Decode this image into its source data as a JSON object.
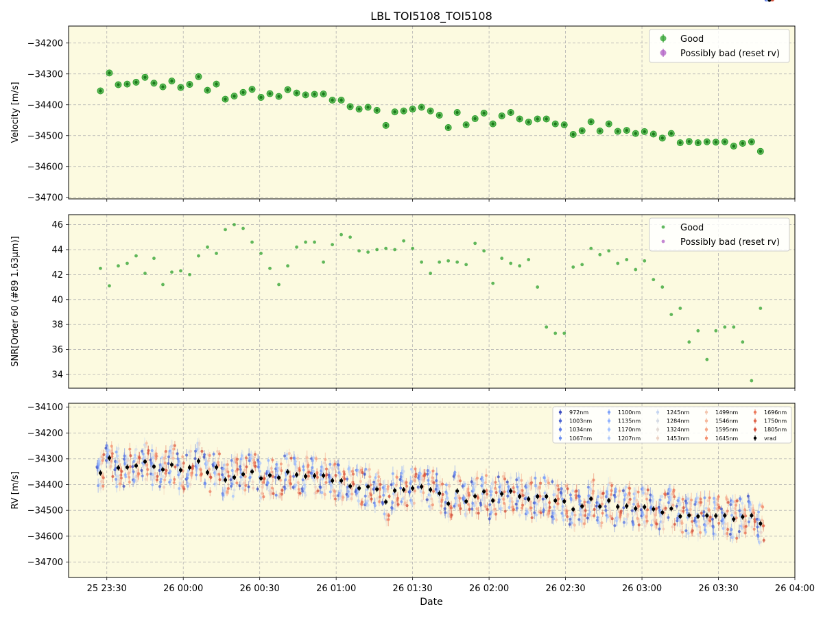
{
  "chart_data": {
    "type": "scatter",
    "title": "LBL TOI5108_TOI5108",
    "xlabel": "Date",
    "x_ticks": [
      "25 23:30",
      "26 00:00",
      "26 00:30",
      "26 01:00",
      "26 01:30",
      "26 02:00",
      "26 02:30",
      "26 03:00",
      "26 03:30",
      "26 04:00"
    ],
    "x_axis_start": "2023-xx-25 23:30",
    "xlim_minutes": [
      -15,
      270
    ],
    "colors": {
      "good": "#2ca02c",
      "bad": "#b05fc4",
      "background": "#fcfae0",
      "vrad": "#000000"
    },
    "times_min": [
      -2.5,
      1,
      4.5,
      8,
      11.5,
      15,
      18.5,
      22,
      25.5,
      29,
      32.5,
      36,
      39.5,
      43,
      46.5,
      50,
      53.5,
      57,
      60.5,
      64,
      67.5,
      71,
      74.5,
      78,
      81.5,
      85,
      88.5,
      92,
      95.5,
      99,
      102.5,
      106,
      109.5,
      113,
      116.5,
      120,
      123.5,
      127,
      130.5,
      134,
      137.5,
      141,
      144.5,
      148,
      151.5,
      155,
      158.5,
      162,
      165.5,
      169,
      172.5,
      176,
      179.5,
      183,
      186.5,
      190,
      193.5,
      197,
      200.5,
      204,
      207.5,
      211,
      214.5,
      218,
      221.5,
      225,
      228.5,
      232,
      235.5,
      239,
      242.5,
      246,
      249.5,
      253,
      256.5,
      260
    ],
    "panels": [
      {
        "id": "velocity",
        "ylabel": "Velocity [m/s]",
        "ylim": [
          -34705,
          -34145
        ],
        "yticks": [
          -34200,
          -34300,
          -34400,
          -34500,
          -34600,
          -34700
        ],
        "legend": {
          "placement": "top-right",
          "entries": [
            {
              "label": "Good",
              "color": "#2ca02c"
            },
            {
              "label": "Possibly bad (reset rv)",
              "color": "#b05fc4"
            }
          ]
        },
        "series": [
          {
            "name": "Good",
            "color": "#2ca02c",
            "values": [
              -34355,
              -34297,
              -34335,
              -34333,
              -34327,
              -34311,
              -34330,
              -34342,
              -34323,
              -34344,
              -34334,
              -34309,
              -34353,
              -34333,
              -34382,
              -34372,
              -34360,
              -34350,
              -34376,
              -34364,
              -34373,
              -34351,
              -34362,
              -34368,
              -34366,
              -34365,
              -34385,
              -34385,
              -34406,
              -34414,
              -34408,
              -34418,
              -34467,
              -34423,
              -34420,
              -34414,
              -34408,
              -34420,
              -34434,
              -34474,
              -34425,
              -34465,
              -34445,
              -34427,
              -34462,
              -34436,
              -34425,
              -34446,
              -34456,
              -34446,
              -34446,
              -34462,
              -34465,
              -34496,
              -34484,
              -34455,
              -34485,
              -34462,
              -34486,
              -34483,
              -34493,
              -34487,
              -34495,
              -34508,
              -34493,
              -34523,
              -34519,
              -34523,
              -34520,
              -34521,
              -34520,
              -34534,
              -34525,
              -34520,
              -34551
            ]
          }
        ]
      },
      {
        "id": "snr",
        "ylabel": "SNR[Order 60 (#89 1.63μm)]",
        "ylim": [
          32.9,
          46.8
        ],
        "yticks": [
          34,
          36,
          38,
          40,
          42,
          44,
          46
        ],
        "legend": {
          "placement": "top-right",
          "entries": [
            {
              "label": "Good",
              "color": "#2ca02c"
            },
            {
              "label": "Possibly bad (reset rv)",
              "color": "#b05fc4"
            }
          ]
        },
        "series": [
          {
            "name": "Good",
            "color": "#2ca02c",
            "values": [
              42.5,
              41.1,
              42.7,
              42.9,
              43.5,
              42.1,
              43.3,
              41.2,
              42.2,
              42.3,
              42.0,
              43.5,
              44.2,
              43.7,
              45.6,
              46.0,
              45.7,
              44.6,
              43.7,
              42.5,
              41.2,
              42.7,
              44.2,
              44.6,
              44.6,
              43.0,
              44.4,
              45.2,
              45.0,
              43.9,
              43.8,
              44.0,
              44.1,
              44.0,
              44.7,
              44.1,
              43.0,
              42.1,
              43.0,
              43.1,
              43.0,
              42.8,
              44.5,
              43.9,
              41.3,
              43.3,
              42.9,
              42.7,
              43.2,
              41.0,
              37.8,
              37.3,
              37.3,
              42.6,
              42.8,
              44.1,
              43.6,
              43.9,
              42.9,
              43.2,
              42.4,
              43.1,
              41.6,
              41.0,
              38.8,
              39.3,
              36.6,
              37.5,
              35.2,
              37.5,
              37.8,
              37.8,
              36.6,
              33.5,
              39.3
            ]
          }
        ]
      },
      {
        "id": "rv",
        "ylabel": "RV [m/s]",
        "ylim": [
          -34760,
          -34085
        ],
        "yticks": [
          -34100,
          -34200,
          -34300,
          -34400,
          -34500,
          -34600,
          -34700
        ],
        "legend": {
          "placement": "top-right",
          "entries": [
            {
              "label": "972nm",
              "color": "#3b4cc0"
            },
            {
              "label": "1003nm",
              "color": "#4a63d3"
            },
            {
              "label": "1034nm",
              "color": "#5b7ae5"
            },
            {
              "label": "1067nm",
              "color": "#6c8ff1"
            },
            {
              "label": "1100nm",
              "color": "#7ea2fa"
            },
            {
              "label": "1135nm",
              "color": "#90b2fe"
            },
            {
              "label": "1170nm",
              "color": "#a3c2fe"
            },
            {
              "label": "1207nm",
              "color": "#b5cdfa"
            },
            {
              "label": "1245nm",
              "color": "#c6d6f1"
            },
            {
              "label": "1284nm",
              "color": "#d5dbe5"
            },
            {
              "label": "1324nm",
              "color": "#e2dad5"
            },
            {
              "label": "1453nm",
              "color": "#ecd3c5"
            },
            {
              "label": "1499nm",
              "color": "#f3c7b1"
            },
            {
              "label": "1546nm",
              "color": "#f6b89c"
            },
            {
              "label": "1595nm",
              "color": "#f6a586"
            },
            {
              "label": "1645nm",
              "color": "#f39171"
            },
            {
              "label": "1696nm",
              "color": "#ec7b5d"
            },
            {
              "label": "1750nm",
              "color": "#e0654a"
            },
            {
              "label": "1805nm",
              "color": "#d24e3a"
            },
            {
              "label": "vrad",
              "color": "#000000"
            }
          ]
        },
        "vrad_series": "Good"
      }
    ]
  }
}
